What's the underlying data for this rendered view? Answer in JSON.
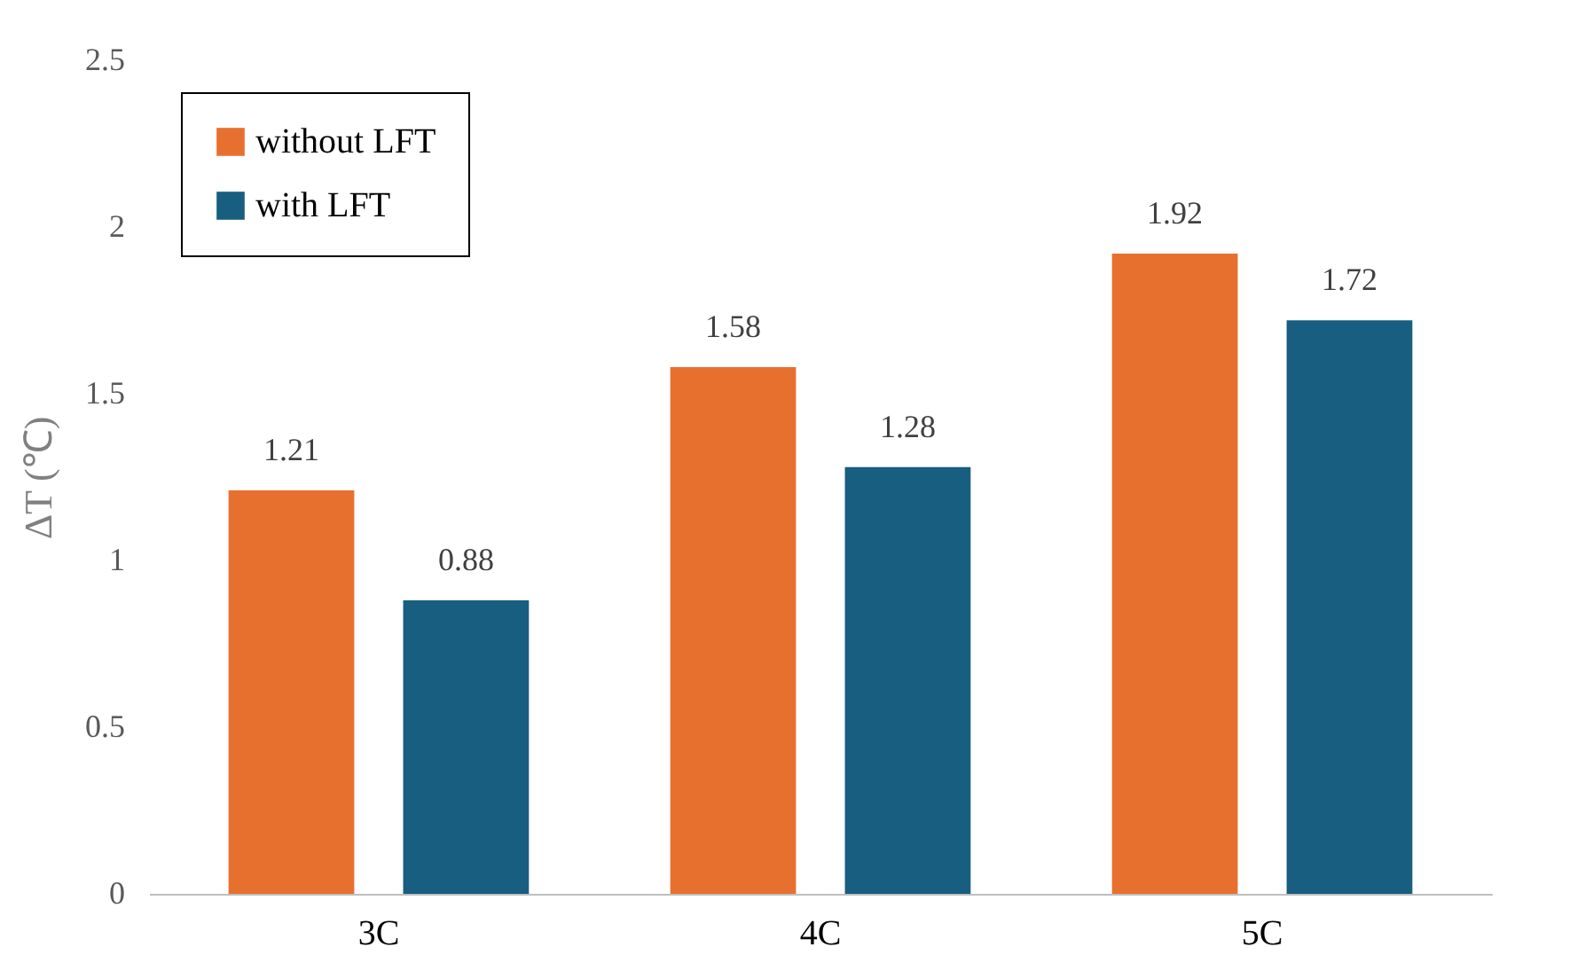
{
  "chart_data": {
    "type": "bar",
    "ylabel": "ΔT (℃)",
    "categories": [
      "3C",
      "4C",
      "5C"
    ],
    "series": [
      {
        "name": "without LFT",
        "color": "#e8702f",
        "values": [
          1.21,
          1.58,
          1.92
        ]
      },
      {
        "name": "with LFT",
        "color": "#175e80",
        "values": [
          0.88,
          1.28,
          1.72
        ]
      }
    ],
    "ylim": [
      0,
      2.5
    ],
    "yticks": [
      0,
      0.5,
      1,
      1.5,
      2,
      2.5
    ],
    "grid": false,
    "legend": "top left",
    "data_labels": true
  }
}
